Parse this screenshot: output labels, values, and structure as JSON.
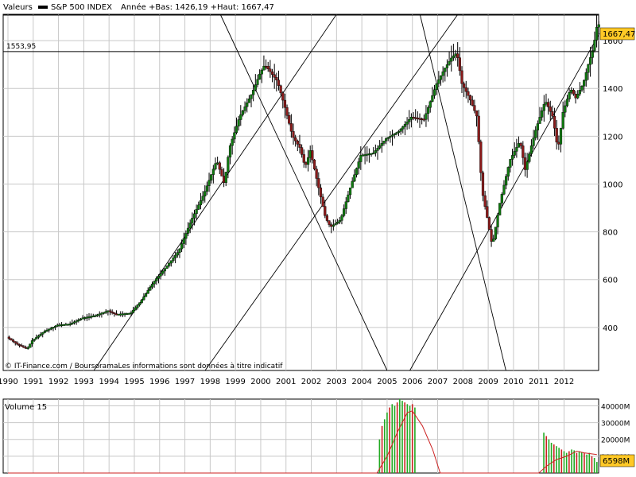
{
  "header": {
    "series_label": "Valeurs",
    "index_name": "S&P 500 INDEX",
    "stats": "Année +Bas: 1426,19 +Haut: 1667,47"
  },
  "credit": "© IT-Finance.com / BoursoramaLes informations sont données à titre indicatif",
  "colors": {
    "up": "#0f7a0f",
    "down": "#8b1a1a",
    "wick": "#000000",
    "volume_up": "#22aa22",
    "volume_down": "#cc2222",
    "volume_ma": "#cc2222",
    "last_badge": "#ffc926"
  },
  "chart_data": [
    {
      "type": "candlestick",
      "title": "S&P 500 INDEX",
      "x_ticks": [
        "1990",
        "1991",
        "1992",
        "1993",
        "1994",
        "1995",
        "1996",
        "1997",
        "1998",
        "1999",
        "2000",
        "2001",
        "2002",
        "2003",
        "2004",
        "2005",
        "2006",
        "2007",
        "2008",
        "2009",
        "2010",
        "2011",
        "2012"
      ],
      "y_ticks": [
        400,
        600,
        800,
        1000,
        1200,
        1400,
        1600
      ],
      "ylim": [
        220,
        1710
      ],
      "xlim": [
        1990.0,
        2013.4
      ],
      "last_value": 1667.47,
      "last_value_label": "1667,47",
      "reference_line": {
        "value": 1553.95,
        "label": "1553,95"
      },
      "year_high": 1667.47,
      "year_low": 1426.19,
      "price_path": [
        [
          1990.0,
          360
        ],
        [
          1990.4,
          330
        ],
        [
          1990.8,
          310
        ],
        [
          1991.0,
          345
        ],
        [
          1991.5,
          385
        ],
        [
          1992.0,
          410
        ],
        [
          1992.5,
          415
        ],
        [
          1993.0,
          440
        ],
        [
          1993.5,
          450
        ],
        [
          1994.0,
          470
        ],
        [
          1994.3,
          455
        ],
        [
          1994.9,
          460
        ],
        [
          1995.3,
          510
        ],
        [
          1995.8,
          590
        ],
        [
          1996.2,
          640
        ],
        [
          1996.8,
          720
        ],
        [
          1997.3,
          850
        ],
        [
          1997.8,
          960
        ],
        [
          1998.3,
          1100
        ],
        [
          1998.6,
          1000
        ],
        [
          1998.8,
          1150
        ],
        [
          1999.2,
          1280
        ],
        [
          1999.7,
          1380
        ],
        [
          2000.0,
          1460
        ],
        [
          2000.2,
          1500
        ],
        [
          2000.7,
          1430
        ],
        [
          2001.0,
          1320
        ],
        [
          2001.3,
          1200
        ],
        [
          2001.6,
          1150
        ],
        [
          2001.8,
          1070
        ],
        [
          2002.0,
          1140
        ],
        [
          2002.3,
          1000
        ],
        [
          2002.6,
          860
        ],
        [
          2002.8,
          820
        ],
        [
          2003.2,
          850
        ],
        [
          2003.6,
          990
        ],
        [
          2004.0,
          1120
        ],
        [
          2004.5,
          1130
        ],
        [
          2005.0,
          1190
        ],
        [
          2005.5,
          1220
        ],
        [
          2006.0,
          1280
        ],
        [
          2006.5,
          1270
        ],
        [
          2007.0,
          1420
        ],
        [
          2007.3,
          1480
        ],
        [
          2007.6,
          1530
        ],
        [
          2007.8,
          1550
        ],
        [
          2008.0,
          1420
        ],
        [
          2008.3,
          1360
        ],
        [
          2008.6,
          1280
        ],
        [
          2008.8,
          970
        ],
        [
          2009.0,
          860
        ],
        [
          2009.2,
          740
        ],
        [
          2009.5,
          920
        ],
        [
          2009.9,
          1100
        ],
        [
          2010.3,
          1180
        ],
        [
          2010.5,
          1060
        ],
        [
          2010.9,
          1220
        ],
        [
          2011.3,
          1350
        ],
        [
          2011.6,
          1280
        ],
        [
          2011.8,
          1140
        ],
        [
          2012.0,
          1300
        ],
        [
          2012.3,
          1400
        ],
        [
          2012.5,
          1360
        ],
        [
          2012.8,
          1420
        ],
        [
          2013.0,
          1500
        ],
        [
          2013.2,
          1570
        ],
        [
          2013.35,
          1667
        ]
      ],
      "trendlines": [
        [
          [
            1993.4,
            220
          ],
          [
            2003.0,
            1710
          ]
        ],
        [
          [
            1997.8,
            220
          ],
          [
            2007.8,
            1710
          ]
        ],
        [
          [
            2005.9,
            220
          ],
          [
            2013.4,
            1630
          ]
        ],
        [
          [
            1998.4,
            1710
          ],
          [
            2005.0,
            220
          ]
        ],
        [
          [
            2006.3,
            1710
          ],
          [
            2009.7,
            220
          ]
        ]
      ]
    },
    {
      "type": "bar",
      "title": "Volume 15",
      "y_ticks_labels": [
        "40000M",
        "30000M",
        "20000M",
        "10000M"
      ],
      "y_ticks": [
        40000,
        30000,
        20000,
        10000
      ],
      "ylim": [
        0,
        44000
      ],
      "last_value_label": "6598M",
      "volumes_2004": [
        [
          2004.7,
          20000
        ],
        [
          2004.8,
          28000
        ],
        [
          2004.9,
          32000
        ],
        [
          2005.0,
          36000
        ],
        [
          2005.1,
          39000
        ],
        [
          2005.2,
          41000
        ],
        [
          2005.3,
          40000
        ],
        [
          2005.4,
          42000
        ],
        [
          2005.5,
          44000
        ],
        [
          2005.6,
          43000
        ],
        [
          2005.7,
          42000
        ],
        [
          2005.8,
          41000
        ],
        [
          2005.9,
          40000
        ],
        [
          2006.0,
          41000
        ],
        [
          2006.1,
          39000
        ]
      ],
      "volumes_2011": [
        [
          2011.2,
          24000
        ],
        [
          2011.3,
          22000
        ],
        [
          2011.4,
          20000
        ],
        [
          2011.5,
          18000
        ],
        [
          2011.6,
          17000
        ],
        [
          2011.7,
          16000
        ],
        [
          2011.8,
          15000
        ],
        [
          2011.9,
          14000
        ],
        [
          2012.0,
          13000
        ],
        [
          2012.1,
          12000
        ],
        [
          2012.2,
          13000
        ],
        [
          2012.3,
          14000
        ],
        [
          2012.4,
          13500
        ],
        [
          2012.5,
          12000
        ],
        [
          2012.6,
          13000
        ],
        [
          2012.7,
          12500
        ],
        [
          2012.8,
          12000
        ],
        [
          2012.9,
          11000
        ],
        [
          2013.0,
          12000
        ],
        [
          2013.1,
          10000
        ],
        [
          2013.2,
          9000
        ],
        [
          2013.3,
          6598
        ]
      ],
      "volume_ma": [
        [
          1990.0,
          0
        ],
        [
          2004.6,
          0
        ],
        [
          2005.0,
          10000
        ],
        [
          2005.4,
          24000
        ],
        [
          2005.8,
          36000
        ],
        [
          2006.0,
          37000
        ],
        [
          2006.4,
          28000
        ],
        [
          2006.8,
          14000
        ],
        [
          2007.1,
          0
        ],
        [
          2011.0,
          0
        ],
        [
          2011.3,
          4000
        ],
        [
          2011.7,
          8000
        ],
        [
          2012.1,
          10000
        ],
        [
          2012.5,
          13000
        ],
        [
          2012.8,
          12000
        ],
        [
          2013.3,
          11000
        ]
      ]
    }
  ]
}
